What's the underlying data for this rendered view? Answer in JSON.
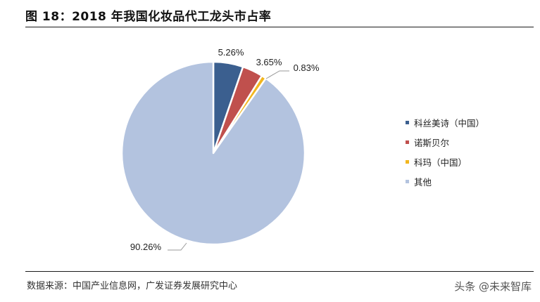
{
  "title": "图 18：2018 年我国化妆品代工龙头市占率",
  "source": "数据来源：中国产业信息网，广发证券发展研究中心",
  "watermark": "头条 @未来智库",
  "chart_data": {
    "type": "pie",
    "title": "图 18：2018 年我国化妆品代工龙头市占率",
    "start_angle": "12 o'clock, clockwise",
    "legend_position": "right",
    "slices": [
      {
        "name": "科丝美诗（中国）",
        "value": 5.26,
        "label": "5.26%",
        "color": "#3b5f8f"
      },
      {
        "name": "诺斯贝尔",
        "value": 3.65,
        "label": "3.65%",
        "color": "#c0504d"
      },
      {
        "name": "科玛（中国）",
        "value": 0.83,
        "label": "0.83%",
        "color": "#f2b61f"
      },
      {
        "name": "其他",
        "value": 90.26,
        "label": "90.26%",
        "color": "#b3c3df"
      }
    ]
  }
}
